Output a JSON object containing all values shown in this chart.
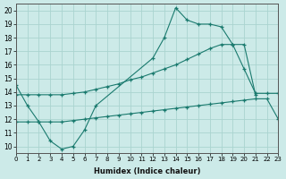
{
  "xlabel": "Humidex (Indice chaleur)",
  "xlim": [
    0,
    23
  ],
  "ylim": [
    9.5,
    20.5
  ],
  "xticks": [
    0,
    1,
    2,
    3,
    4,
    5,
    6,
    7,
    8,
    9,
    10,
    11,
    12,
    13,
    14,
    15,
    16,
    17,
    18,
    19,
    20,
    21,
    22,
    23
  ],
  "yticks": [
    10,
    11,
    12,
    13,
    14,
    15,
    16,
    17,
    18,
    19,
    20
  ],
  "bg_color": "#cceae8",
  "grid_color": "#aad4d0",
  "line_color": "#1a7a6e",
  "series": [
    {
      "x": [
        0,
        1,
        2,
        3,
        4,
        5,
        6,
        7,
        12,
        13,
        14,
        15,
        16,
        17,
        18,
        19,
        20,
        21
      ],
      "y": [
        14.5,
        13.0,
        11.8,
        10.4,
        9.8,
        10.0,
        11.2,
        13.0,
        16.5,
        18.0,
        20.2,
        19.3,
        19.0,
        19.0,
        18.8,
        17.5,
        17.5,
        13.8
      ]
    },
    {
      "x": [
        0,
        1,
        2,
        3,
        4,
        5,
        6,
        7,
        8,
        9,
        10,
        11,
        12,
        13,
        14,
        15,
        16,
        17,
        18,
        19,
        20,
        21,
        22,
        23
      ],
      "y": [
        13.8,
        13.8,
        13.8,
        13.8,
        13.8,
        13.9,
        14.0,
        14.2,
        14.4,
        14.6,
        14.9,
        15.1,
        15.4,
        15.7,
        16.0,
        16.4,
        16.8,
        17.2,
        17.5,
        17.5,
        15.7,
        13.9,
        13.9,
        13.9
      ]
    },
    {
      "x": [
        0,
        1,
        2,
        3,
        4,
        5,
        6,
        7,
        8,
        9,
        10,
        11,
        12,
        13,
        14,
        15,
        16,
        17,
        18,
        19,
        20,
        21,
        22,
        23
      ],
      "y": [
        11.8,
        11.8,
        11.8,
        11.8,
        11.8,
        11.9,
        12.0,
        12.1,
        12.2,
        12.3,
        12.4,
        12.5,
        12.6,
        12.7,
        12.8,
        12.9,
        13.0,
        13.1,
        13.2,
        13.3,
        13.4,
        13.5,
        13.5,
        12.0
      ]
    }
  ]
}
